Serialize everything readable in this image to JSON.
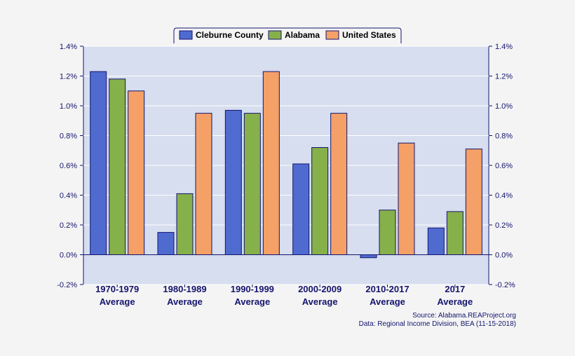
{
  "chart_data": {
    "type": "bar",
    "categories": [
      [
        "1970-1979",
        "Average"
      ],
      [
        "1980-1989",
        "Average"
      ],
      [
        "1990-1999",
        "Average"
      ],
      [
        "2000-2009",
        "Average"
      ],
      [
        "2010-2017",
        "Average"
      ],
      [
        "2017",
        "Average"
      ]
    ],
    "series": [
      {
        "name": "Cleburne County",
        "color": "#4f6bd0",
        "values": [
          1.23,
          0.15,
          0.97,
          0.61,
          -0.02,
          0.18
        ]
      },
      {
        "name": "Alabama",
        "color": "#86b04a",
        "values": [
          1.18,
          0.41,
          0.95,
          0.72,
          0.3,
          0.29
        ]
      },
      {
        "name": "United States",
        "color": "#f4a067",
        "values": [
          1.1,
          0.95,
          1.23,
          0.95,
          0.75,
          0.71
        ]
      }
    ],
    "ylim": [
      -0.2,
      1.4
    ],
    "yticks": [
      -0.2,
      0.0,
      0.2,
      0.4,
      0.6,
      0.8,
      1.0,
      1.2,
      1.4
    ],
    "ytick_labels": [
      "-0.2%",
      "0.0%",
      "0.2%",
      "0.4%",
      "0.6%",
      "0.8%",
      "1.0%",
      "1.2%",
      "1.4%"
    ],
    "grid": true,
    "legend_position": "top-center",
    "dual_y_axis": true
  },
  "source": {
    "line1": "Source: Alabama.REAProject.org",
    "line2": "Data: Regional Income Division, BEA (11-15-2018)"
  }
}
